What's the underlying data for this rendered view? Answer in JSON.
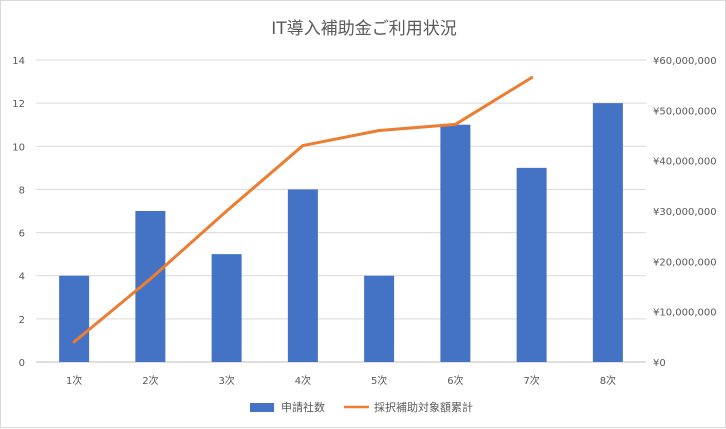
{
  "chart_data": {
    "type": "bar",
    "title": "IT導入補助金ご利用状況",
    "categories": [
      "1次",
      "2次",
      "3次",
      "4次",
      "5次",
      "6次",
      "7次",
      "8次"
    ],
    "series": [
      {
        "name": "申請社数",
        "type": "bar",
        "axis": "left",
        "color": "#4472c4",
        "values": [
          4,
          7,
          5,
          8,
          4,
          11,
          9,
          12
        ]
      },
      {
        "name": "採択補助対象額累計",
        "type": "line",
        "axis": "right",
        "color": "#ed7d31",
        "values": [
          4000000,
          16500000,
          30000000,
          43000000,
          46000000,
          47200000,
          56500000,
          null
        ]
      }
    ],
    "y_left": {
      "ylim": [
        0,
        14
      ],
      "ticks": [
        "0",
        "2",
        "4",
        "6",
        "8",
        "10",
        "12",
        "14"
      ]
    },
    "y_right": {
      "ylim": [
        0,
        60000000
      ],
      "ticks": [
        "¥0",
        "¥10,000,000",
        "¥20,000,000",
        "¥30,000,000",
        "¥40,000,000",
        "¥50,000,000",
        "¥60,000,000"
      ]
    },
    "grid": true,
    "legend_position": "bottom"
  }
}
